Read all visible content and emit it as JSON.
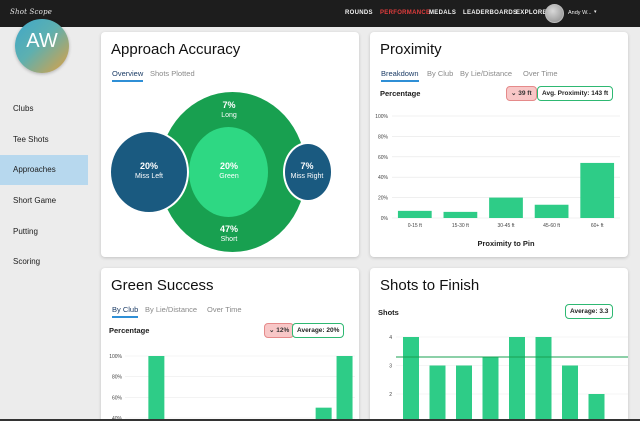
{
  "nav": {
    "logo": "Shot Scope",
    "links": [
      "ROUNDS",
      "PERFORMANCE",
      "MEDALS",
      "LEADERBOARDS",
      "EXPLORE"
    ],
    "active_index": 1,
    "user": "Andy W...",
    "caret": "▾",
    "colors": {
      "active": "#e03c3c",
      "bar": "#1d1d1d"
    }
  },
  "sidebar": {
    "avatar_initials": "AW",
    "items": [
      "Clubs",
      "Tee Shots",
      "Approaches",
      "Short Game",
      "Putting",
      "Scoring"
    ],
    "active_index": 2
  },
  "approach": {
    "title": "Approach Accuracy",
    "tabs": [
      "Overview",
      "Shots Plotted"
    ],
    "long": {
      "pct": "7%",
      "label": "Long"
    },
    "green": {
      "pct": "20%",
      "label": "Green"
    },
    "short": {
      "pct": "47%",
      "label": "Short"
    },
    "miss_left": {
      "pct": "20%",
      "label": "Miss Left"
    },
    "miss_right": {
      "pct": "7%",
      "label": "Miss Right"
    }
  },
  "proximity": {
    "title": "Proximity",
    "tabs": [
      "Breakdown",
      "By Club",
      "By Lie/Distance",
      "Over Time"
    ],
    "sub_label": "Percentage",
    "badge_down": "39 ft",
    "badge_avg": "Avg. Proximity: 143 ft",
    "chart_data": {
      "type": "bar",
      "categories": [
        "0-15 ft",
        "15-30 ft",
        "30-45 ft",
        "45-60 ft",
        "60+ ft"
      ],
      "values": [
        7,
        6,
        20,
        13,
        54
      ],
      "ytick_labels": [
        "0%",
        "20%",
        "40%",
        "60%",
        "80%",
        "100%"
      ],
      "ylim": [
        0,
        100
      ],
      "xlabel": "Proximity to Pin",
      "color": "#2ecc87"
    }
  },
  "green_success": {
    "title": "Green Success",
    "tabs": [
      "By Club",
      "By Lie/Distance",
      "Over Time"
    ],
    "sub_label": "Percentage",
    "badge_down": "12%",
    "badge_avg": "Average: 20%",
    "chart_data": {
      "type": "bar",
      "values": [
        0,
        100,
        0,
        0,
        0,
        0,
        0,
        0,
        0,
        50,
        100
      ],
      "ytick_labels": [
        "40%",
        "60%",
        "80%",
        "100%"
      ],
      "ylim": [
        0,
        100
      ],
      "color": "#2ecc87"
    }
  },
  "shots_to_finish": {
    "title": "Shots to Finish",
    "sub_label": "Shots",
    "badge_avg": "Average: 3.3",
    "chart_data": {
      "type": "bar",
      "values": [
        4,
        3,
        3,
        3.3,
        4,
        4,
        3,
        2
      ],
      "ytick_labels": [
        "2",
        "3",
        "4"
      ],
      "average": 3.3,
      "color": "#2ecc87"
    }
  }
}
